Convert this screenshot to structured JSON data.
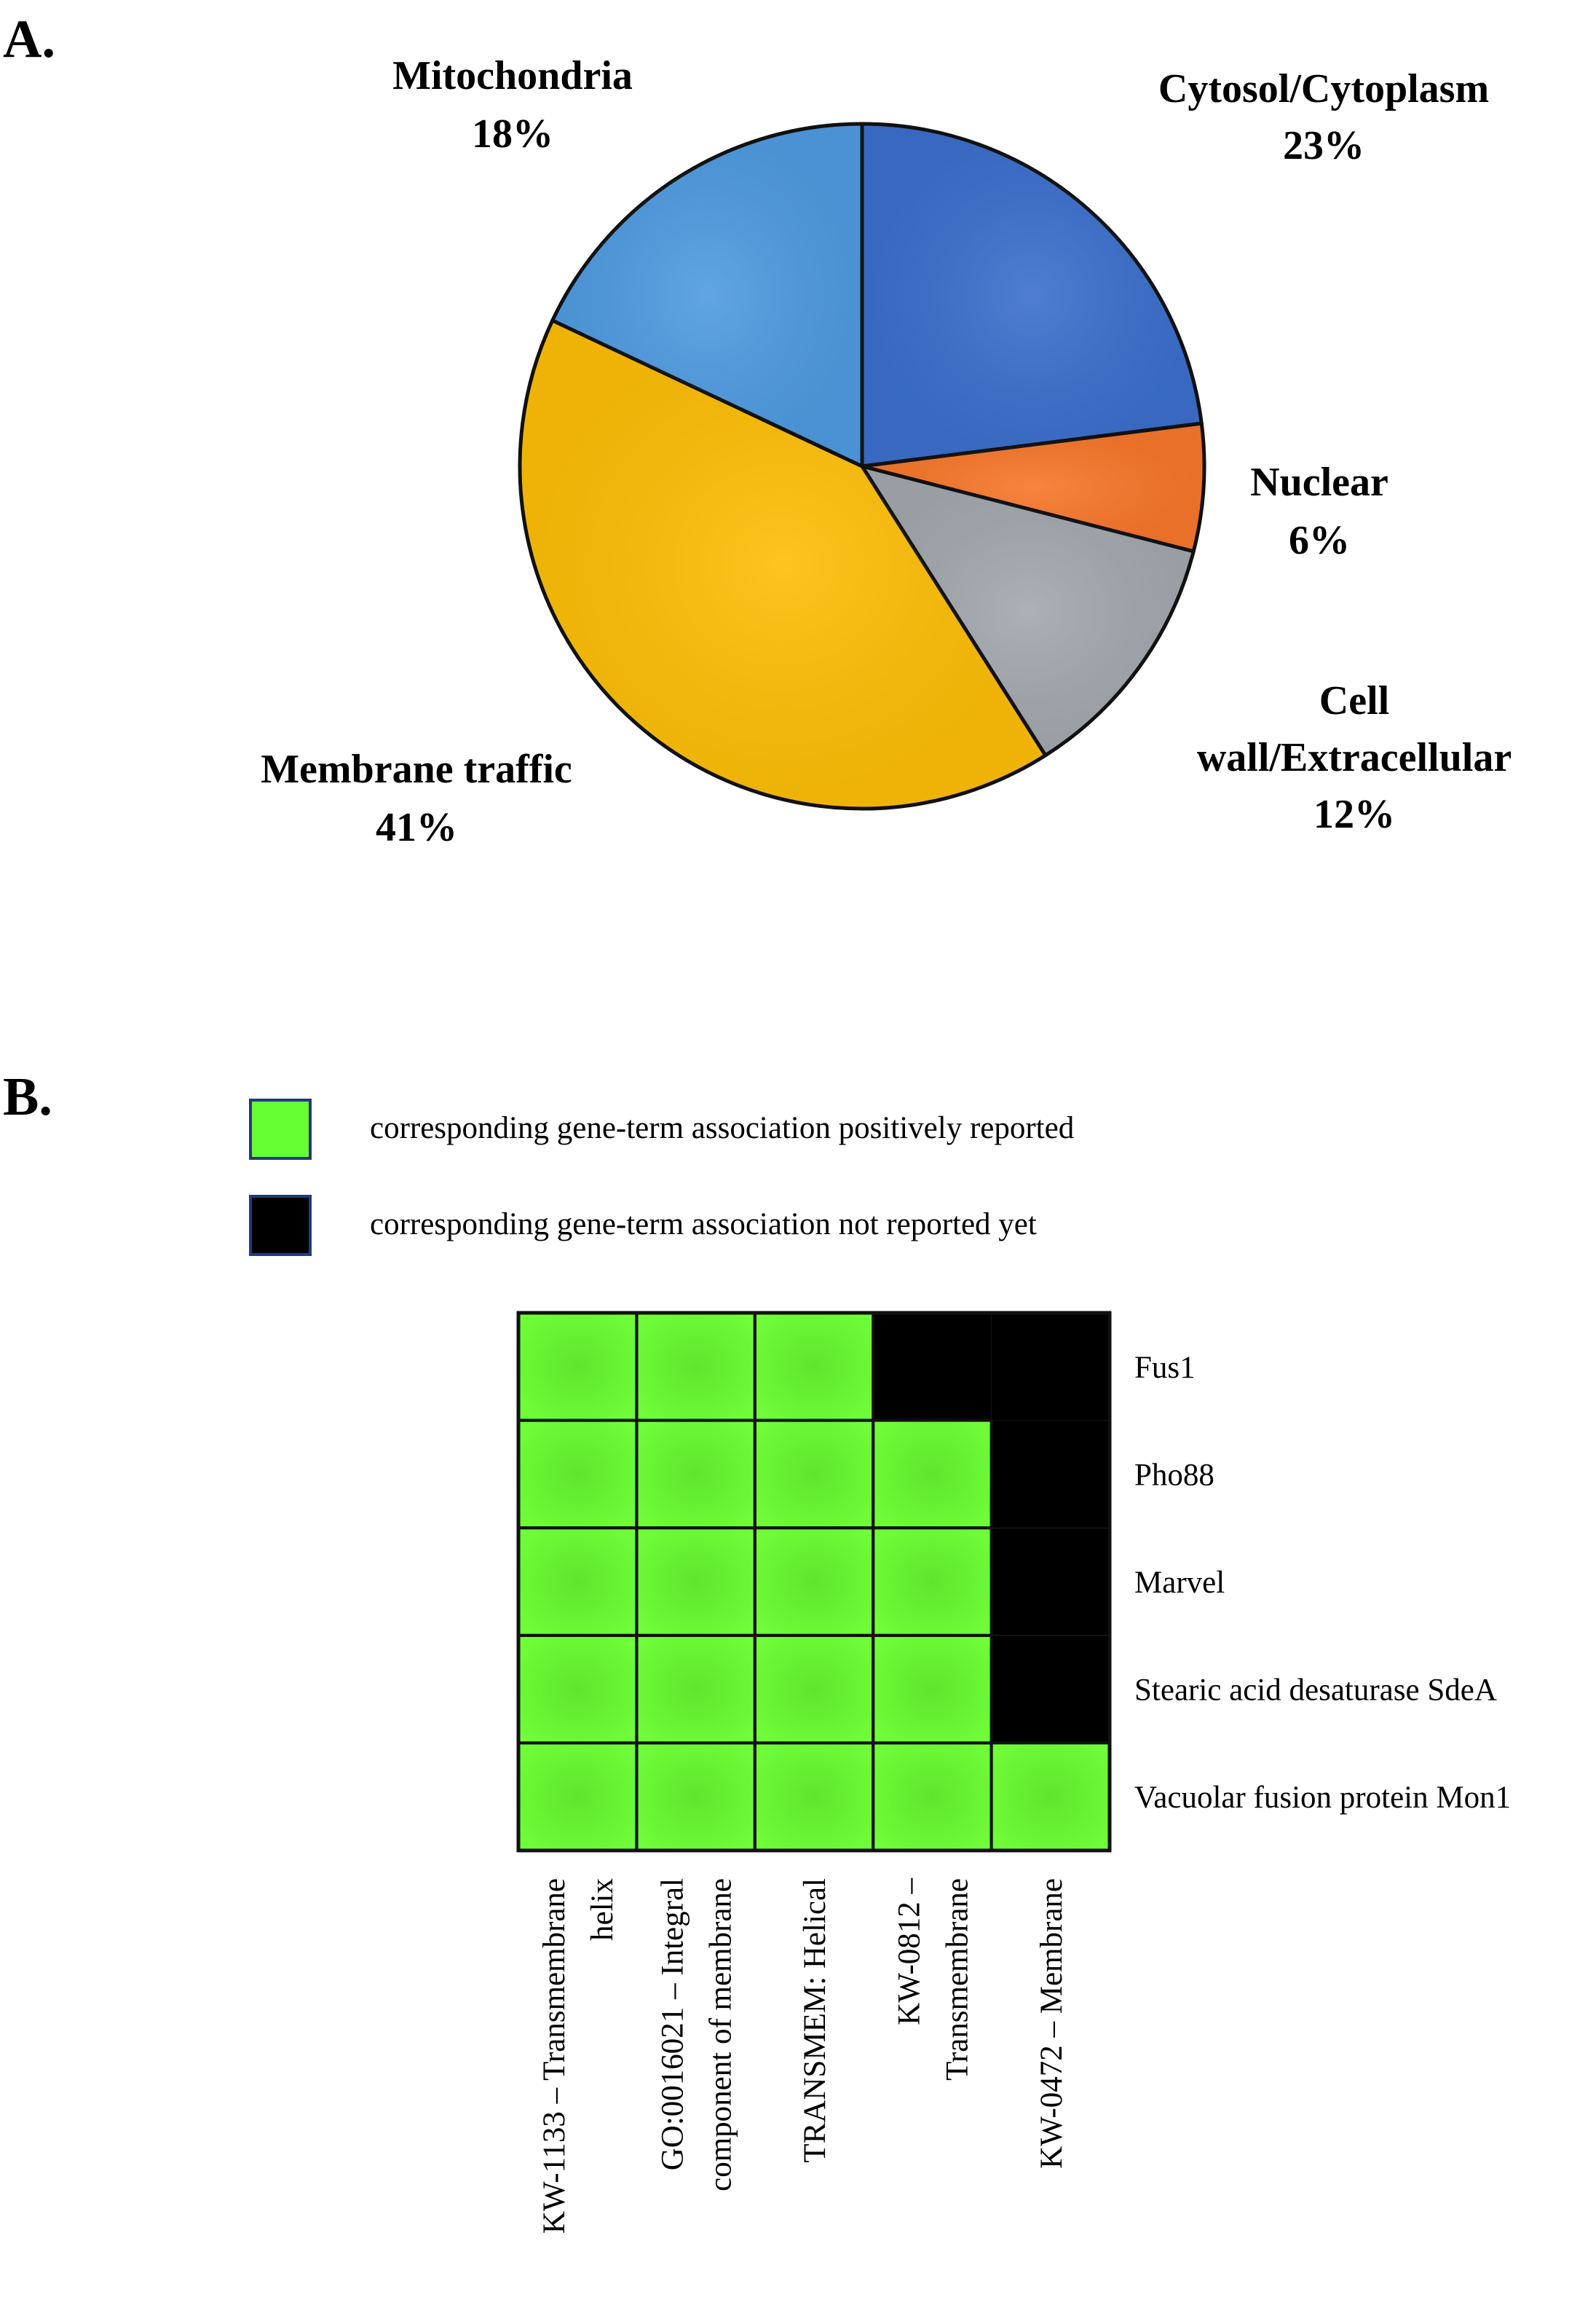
{
  "panels": {
    "a_label": "A.",
    "b_label": "B."
  },
  "chart_data": [
    {
      "type": "pie",
      "panel": "A.",
      "start_angle_deg": 0,
      "direction": "clockwise",
      "slices": [
        {
          "label_lines": [
            "Cytosol/Cytoplasm",
            "23%"
          ],
          "name": "Cytosol/Cytoplasm",
          "value": 23,
          "color": "#3b6fcc"
        },
        {
          "label_lines": [
            "Nuclear",
            "6%"
          ],
          "name": "Nuclear",
          "value": 6,
          "color": "#f7772a"
        },
        {
          "label_lines": [
            "Cell",
            "wall/Extracellular",
            "12%"
          ],
          "name": "Cell wall/Extracellular",
          "value": 12,
          "color": "#a3a8ae"
        },
        {
          "label_lines": [
            "Membrane traffic",
            "41%"
          ],
          "name": "Membrane traffic",
          "value": 41,
          "color": "#fdbe06"
        },
        {
          "label_lines": [
            "Mitochondria",
            "18%"
          ],
          "name": "Mitochondria",
          "value": 18,
          "color": "#4f9be0"
        }
      ]
    },
    {
      "type": "heatmap",
      "panel": "B.",
      "legend": [
        {
          "state": 1,
          "color": "#66ff33",
          "text": "corresponding gene-term association positively reported"
        },
        {
          "state": 0,
          "color": "#000000",
          "text": "corresponding gene-term association not reported  yet"
        }
      ],
      "rows": [
        "Fus1",
        "Pho88",
        "Marvel",
        "Stearic acid desaturase SdeA",
        "Vacuolar fusion protein Mon1"
      ],
      "columns": [
        [
          "KW-1133 – Transmembrane",
          "helix"
        ],
        [
          "GO:0016021 – Integral",
          "component of membrane"
        ],
        [
          "TRANSMEM: Helical"
        ],
        [
          "KW-0812 –",
          "Transmembrane"
        ],
        [
          "KW-0472 – Membrane"
        ]
      ],
      "matrix": [
        [
          1,
          1,
          1,
          0,
          0
        ],
        [
          1,
          1,
          1,
          1,
          0
        ],
        [
          1,
          1,
          1,
          1,
          0
        ],
        [
          1,
          1,
          1,
          1,
          0
        ],
        [
          1,
          1,
          1,
          1,
          1
        ]
      ],
      "colors": {
        "positive": "#66ff33",
        "negative": "#000000"
      }
    }
  ]
}
